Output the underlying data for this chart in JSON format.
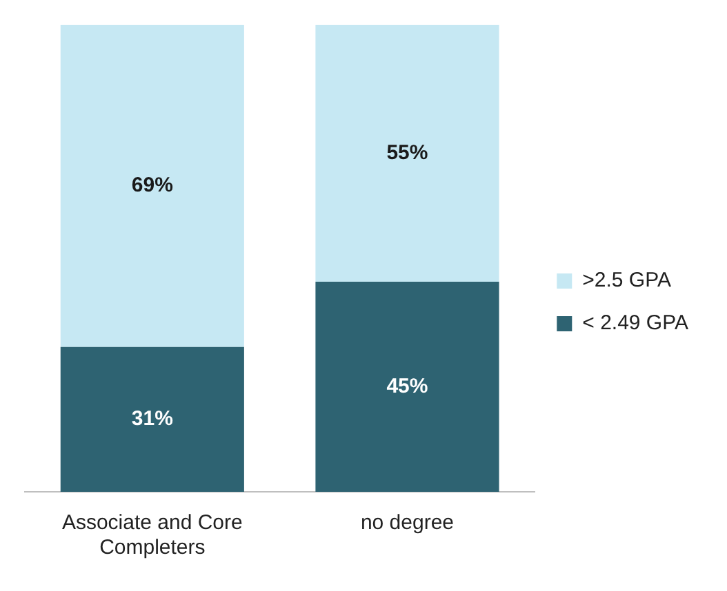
{
  "chart_data": {
    "type": "bar",
    "stacked": true,
    "categories": [
      "Associate and Core Completers",
      "no degree"
    ],
    "series": [
      {
        "name": "< 2.49 GPA",
        "color": "#2e6372",
        "values": [
          31,
          45
        ],
        "value_labels": [
          "31%",
          "45%"
        ]
      },
      {
        "name": ">2.5 GPA",
        "color": "#c6e8f3",
        "values": [
          69,
          55
        ],
        "value_labels": [
          "69%",
          "55%"
        ]
      }
    ],
    "legend": "right",
    "grid": false,
    "tick_labels": "x"
  }
}
